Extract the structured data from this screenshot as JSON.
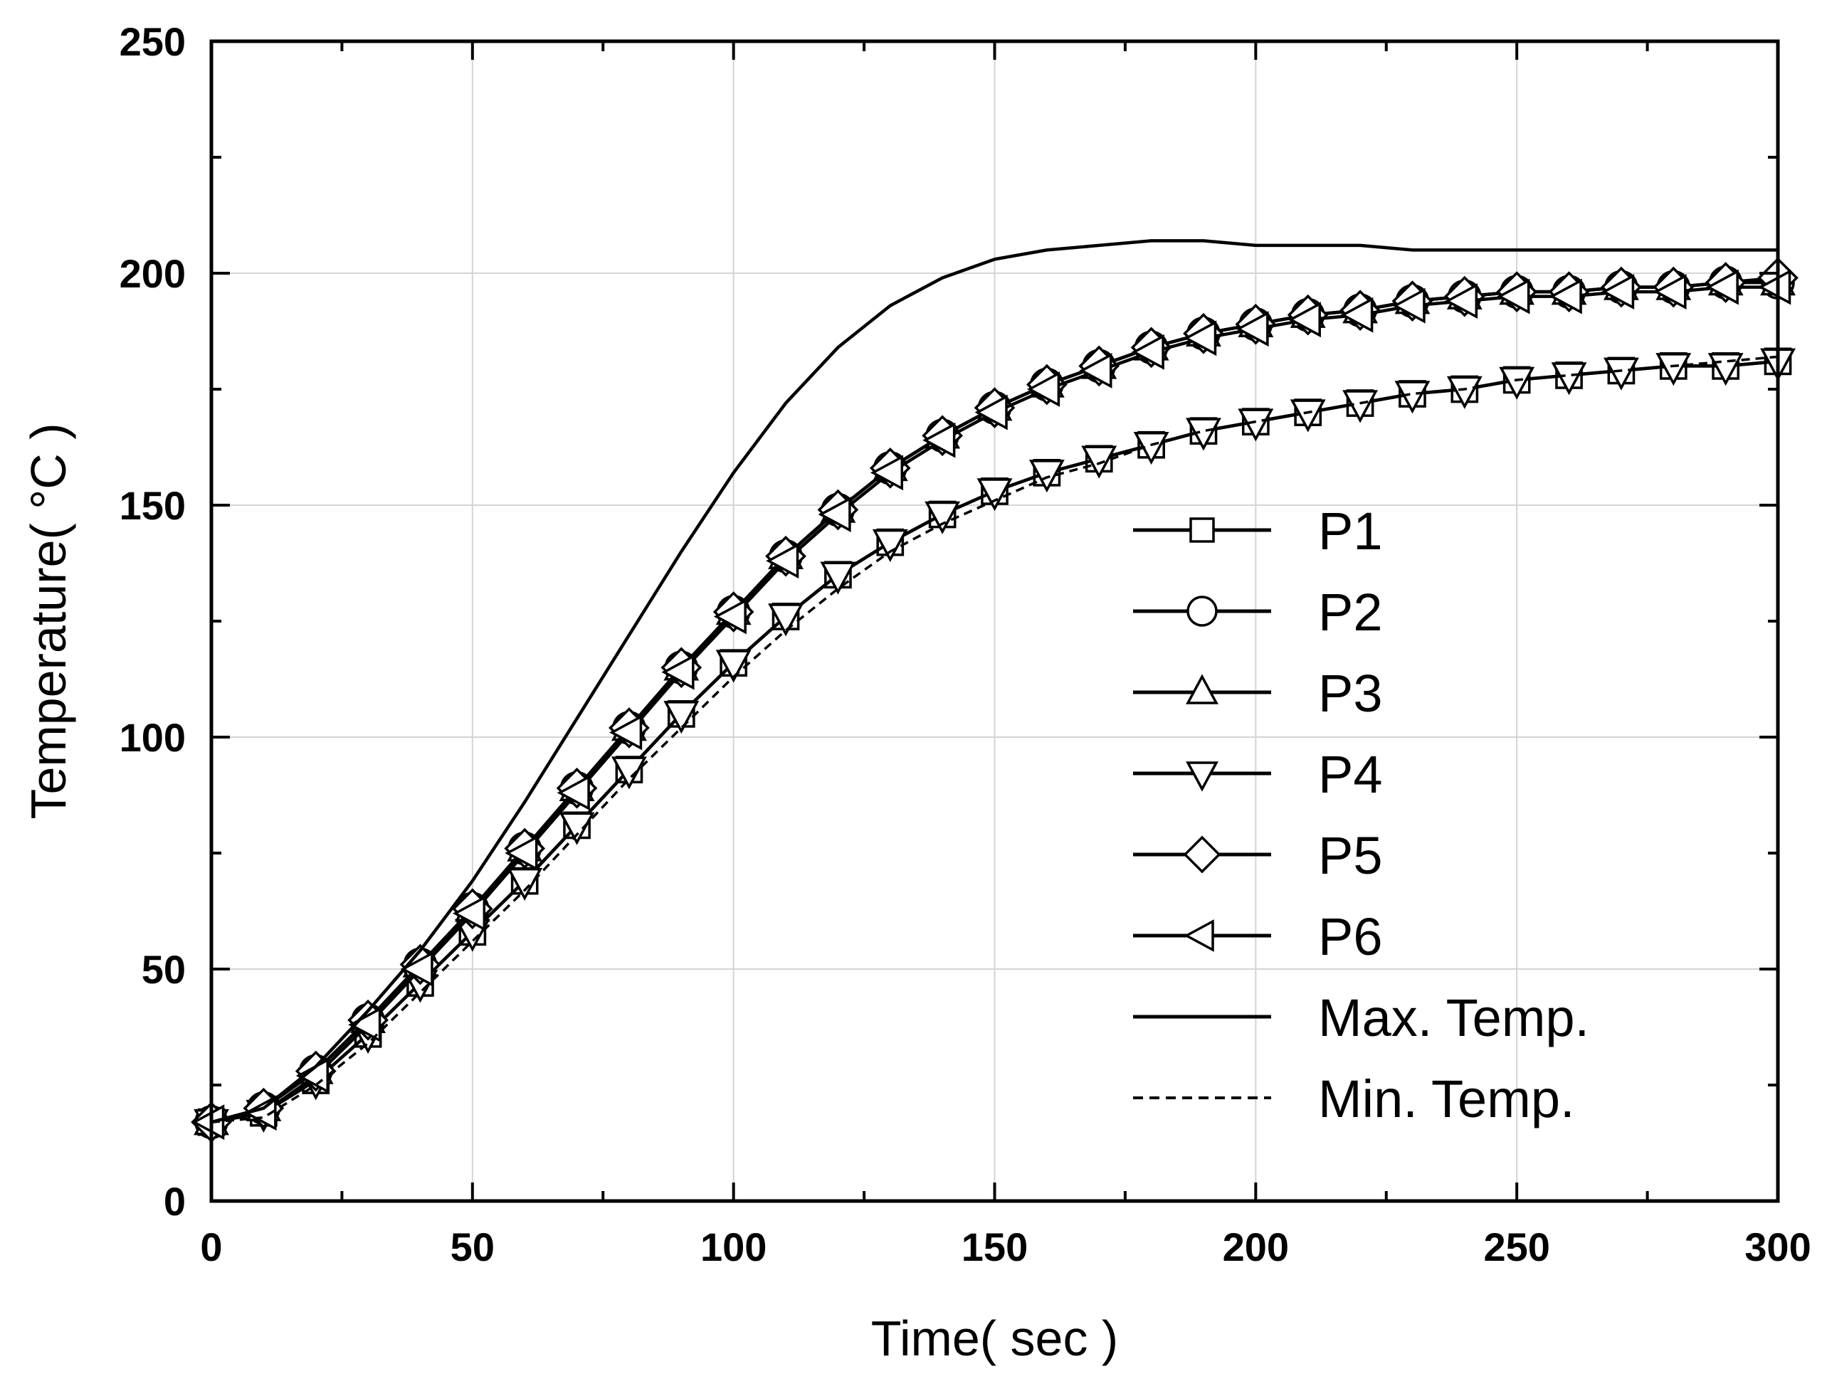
{
  "chart_data": {
    "type": "line",
    "title": "",
    "xlabel": "Time( sec )",
    "ylabel": "Temperature( °C )",
    "xlim": [
      0,
      300
    ],
    "ylim": [
      0,
      250
    ],
    "xticks": [
      0,
      50,
      100,
      150,
      200,
      250,
      300
    ],
    "yticks": [
      0,
      50,
      100,
      150,
      200,
      250
    ],
    "grid": true,
    "legend_position": "center-right",
    "x": [
      0,
      10,
      20,
      30,
      40,
      50,
      60,
      70,
      80,
      90,
      100,
      110,
      120,
      130,
      140,
      150,
      160,
      170,
      180,
      190,
      200,
      210,
      220,
      230,
      240,
      250,
      260,
      270,
      280,
      290,
      300
    ],
    "series": [
      {
        "name": "P1",
        "marker": "square",
        "values": [
          17,
          19,
          26,
          36,
          47,
          58,
          69,
          81,
          93,
          105,
          116,
          126,
          135,
          142,
          148,
          153,
          157,
          160,
          163,
          166,
          168,
          170,
          172,
          174,
          175,
          177,
          178,
          179,
          180,
          180,
          181
        ]
      },
      {
        "name": "P2",
        "marker": "circle",
        "values": [
          17,
          20,
          28,
          39,
          51,
          63,
          76,
          89,
          102,
          115,
          127,
          139,
          149,
          158,
          165,
          171,
          176,
          180,
          184,
          187,
          189,
          191,
          192,
          194,
          195,
          196,
          196,
          197,
          197,
          198,
          198
        ]
      },
      {
        "name": "P3",
        "marker": "triangle-up",
        "values": [
          17,
          20,
          28,
          39,
          51,
          63,
          76,
          89,
          102,
          115,
          127,
          139,
          149,
          158,
          165,
          171,
          176,
          180,
          184,
          187,
          189,
          191,
          192,
          194,
          195,
          196,
          196,
          197,
          197,
          198,
          198
        ]
      },
      {
        "name": "P4",
        "marker": "triangle-down",
        "values": [
          17,
          19,
          26,
          36,
          47,
          58,
          69,
          81,
          93,
          105,
          116,
          126,
          135,
          142,
          148,
          153,
          157,
          160,
          163,
          166,
          168,
          170,
          172,
          174,
          175,
          177,
          178,
          179,
          180,
          180,
          181
        ]
      },
      {
        "name": "P5",
        "marker": "diamond",
        "values": [
          17,
          20,
          28,
          39,
          51,
          63,
          76,
          89,
          102,
          115,
          127,
          139,
          149,
          158,
          165,
          171,
          176,
          180,
          184,
          187,
          189,
          191,
          192,
          194,
          195,
          196,
          196,
          197,
          197,
          198,
          199
        ]
      },
      {
        "name": "P6",
        "marker": "triangle-left",
        "values": [
          17,
          19,
          27,
          38,
          50,
          62,
          75,
          88,
          101,
          114,
          126,
          138,
          148,
          157,
          164,
          170,
          175,
          179,
          183,
          186,
          188,
          190,
          191,
          193,
          194,
          195,
          195,
          196,
          196,
          197,
          197
        ]
      },
      {
        "name": "Max. Temp.",
        "marker": "none",
        "line": "solid",
        "values": [
          17,
          20,
          29,
          41,
          54,
          69,
          86,
          104,
          122,
          140,
          157,
          172,
          184,
          193,
          199,
          203,
          205,
          206,
          207,
          207,
          206,
          206,
          206,
          205,
          205,
          205,
          205,
          205,
          205,
          205,
          205
        ]
      },
      {
        "name": "Min. Temp.",
        "marker": "none",
        "line": "dashed",
        "values": [
          17,
          18,
          25,
          34,
          45,
          56,
          67,
          79,
          91,
          102,
          113,
          123,
          132,
          140,
          146,
          151,
          156,
          159,
          163,
          166,
          168,
          170,
          172,
          174,
          175,
          177,
          178,
          179,
          180,
          181,
          182
        ]
      }
    ]
  }
}
